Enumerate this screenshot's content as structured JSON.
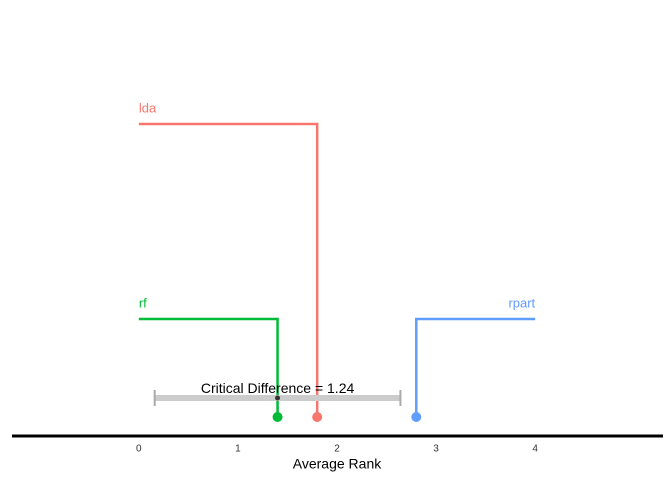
{
  "chart_data": {
    "type": "critical-difference",
    "xlabel": "Average Rank",
    "xlim": [
      -1.28,
      5.29
    ],
    "xticks": [
      0,
      1,
      2,
      3,
      4
    ],
    "cd_label": "Critical Difference =",
    "cd": 1.24,
    "series": [
      {
        "name": "lda",
        "color": "#F8766D",
        "values": [
          1.8
        ]
      },
      {
        "name": "rf",
        "color": "#00BA38",
        "values": [
          1.4
        ]
      },
      {
        "name": "rpart",
        "color": "#619CFF",
        "values": [
          2.8
        ]
      }
    ]
  }
}
